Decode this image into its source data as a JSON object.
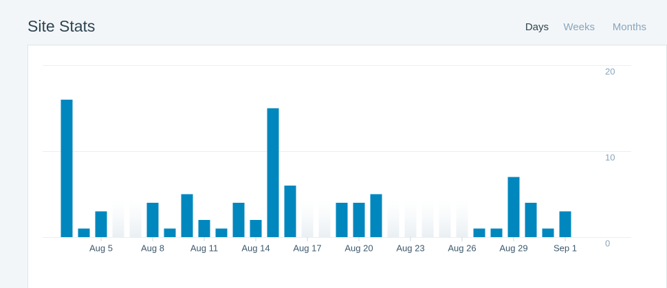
{
  "header": {
    "title": "Site Stats",
    "tabs": [
      "Days",
      "Weeks",
      "Months"
    ],
    "active_tab": 0
  },
  "chart_data": {
    "type": "bar",
    "categories": [
      null,
      null,
      "Aug 5",
      null,
      null,
      "Aug 8",
      null,
      null,
      "Aug 11",
      null,
      null,
      "Aug 14",
      null,
      null,
      "Aug 17",
      null,
      null,
      "Aug 20",
      null,
      null,
      "Aug 23",
      null,
      null,
      "Aug 26",
      null,
      null,
      "Aug 29",
      null,
      null,
      "Sep 1"
    ],
    "values": [
      16,
      1,
      3,
      0,
      0,
      4,
      1,
      5,
      2,
      1,
      4,
      2,
      15,
      6,
      0,
      0,
      4,
      4,
      5,
      0,
      0,
      0,
      0,
      0,
      1,
      1,
      7,
      4,
      1,
      3
    ],
    "color": "#0087be",
    "ylim": [
      0,
      20
    ],
    "yticks": [
      0,
      10,
      20
    ],
    "grid": true
  }
}
